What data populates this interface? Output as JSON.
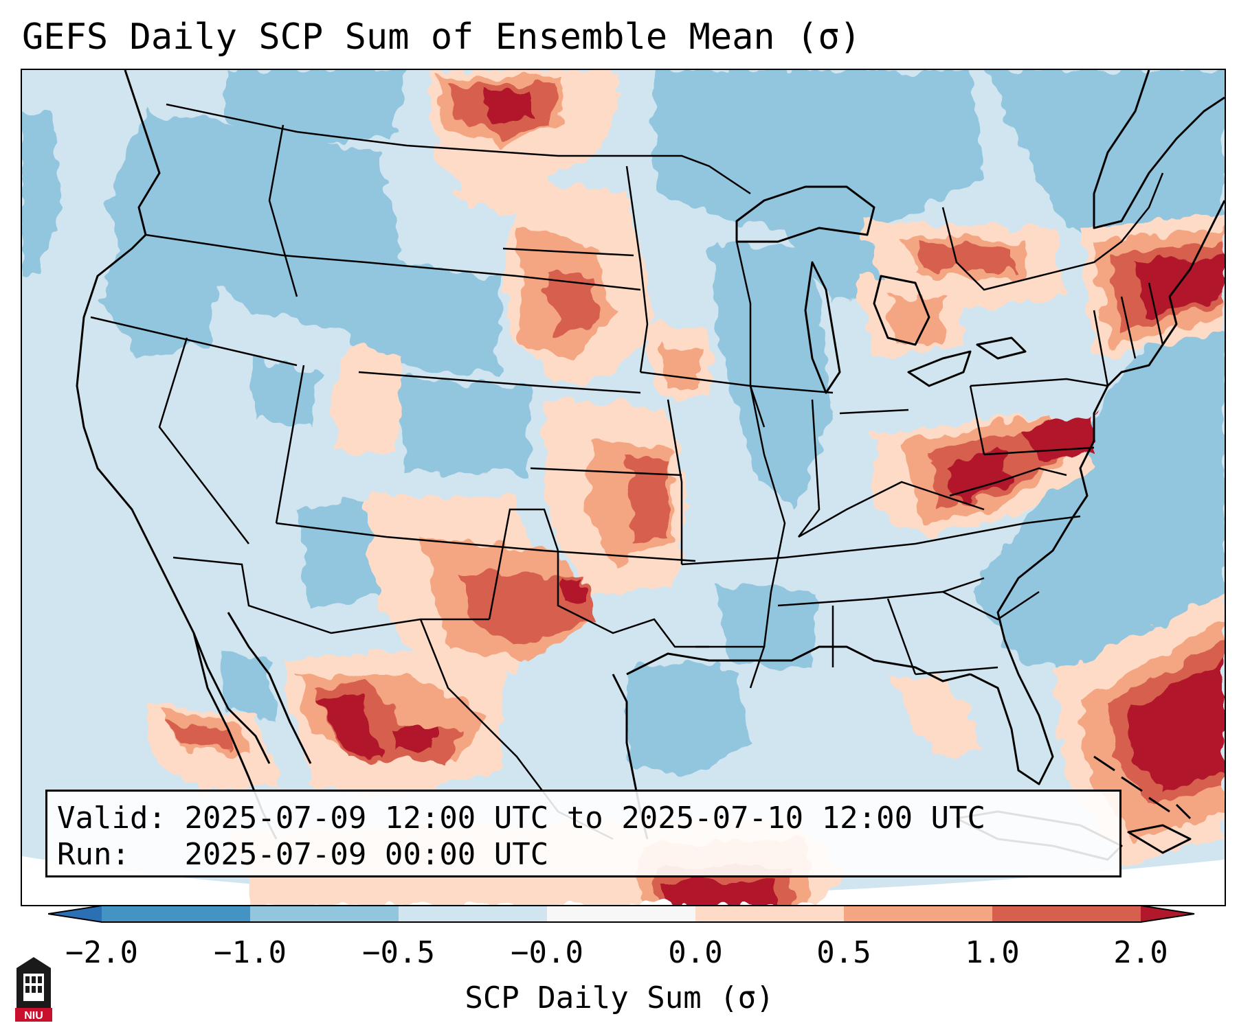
{
  "title": "GEFS Daily SCP Sum of Ensemble Mean (σ)",
  "info": {
    "valid_label": "Valid:",
    "valid_value": "2025-07-09 12:00 UTC to 2025-07-10 12:00 UTC",
    "run_label": "Run:",
    "run_value": "2025-07-09 00:00 UTC"
  },
  "colorbar": {
    "label": "SCP Daily Sum (σ)",
    "ticks": [
      "−2.0",
      "−1.0",
      "−0.5",
      "−0.0",
      "0.0",
      "0.5",
      "1.0",
      "2.0"
    ],
    "bins": [
      {
        "range": "< -2.0",
        "color": "#2b6fb5"
      },
      {
        "range": "-2.0 to -1.0",
        "color": "#4393c3"
      },
      {
        "range": "-1.0 to -0.5",
        "color": "#92c5de"
      },
      {
        "range": "-0.5 to -0.0",
        "color": "#d1e5f0"
      },
      {
        "range": "-0.0 to 0.0",
        "color": "#f7f7f7"
      },
      {
        "range": "0.0 to 0.5",
        "color": "#fddbc7"
      },
      {
        "range": "0.5 to 1.0",
        "color": "#f4a582"
      },
      {
        "range": "1.0 to 2.0",
        "color": "#d6604d"
      },
      {
        "range": "> 2.0",
        "color": "#b2182b"
      }
    ]
  },
  "map_features": {
    "base_field": "near-normal (-0.5 to 0.0 sigma) across most of the domain",
    "negative_regions": [
      "northern Rockies and Montana",
      "Wyoming and Colorado",
      "Wisconsin and Illinois",
      "Great Lakes",
      "western Gulf of Mexico",
      "western Atlantic Ocean",
      "southern Canada"
    ],
    "positive_regions": [
      "southern Saskatchewan and Manitoba",
      "northern Plains (North and South Dakota)",
      "Kansas and Oklahoma",
      "Texas Panhandle and western Oklahoma",
      "northern Mexico (Sierra Madre Occidental)",
      "Baja California",
      "Ontario",
      "Michigan",
      "West Virginia, Maryland and Virginia",
      "New England",
      "southwestern Atlantic near the Bahamas",
      "Caribbean south of Cuba"
    ]
  },
  "logo": {
    "text": "NIU"
  }
}
